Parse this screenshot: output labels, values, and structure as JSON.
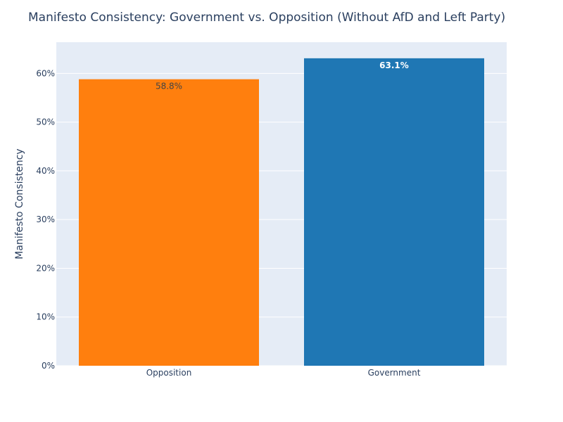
{
  "chart_data": {
    "type": "bar",
    "title": "Manifesto Consistency: Government vs. Opposition (Without AfD and Left Party)",
    "xlabel": "",
    "ylabel": "Manifesto Consistency",
    "categories": [
      "Opposition",
      "Government"
    ],
    "values": [
      58.8,
      63.1
    ],
    "value_labels": [
      "58.8%",
      "63.1%"
    ],
    "bar_colors": [
      "#ff7f0e",
      "#1f77b4"
    ],
    "label_colors": [
      "#444444",
      "#ffffff"
    ],
    "label_bold": [
      false,
      true
    ],
    "yticks": [
      0,
      10,
      20,
      30,
      40,
      50,
      60
    ],
    "ytick_labels": [
      "0%",
      "10%",
      "20%",
      "30%",
      "40%",
      "50%",
      "60%"
    ],
    "ylim": [
      0,
      66.4
    ],
    "grid": true,
    "legend": "none",
    "plot_background": "#e5ecf6"
  }
}
